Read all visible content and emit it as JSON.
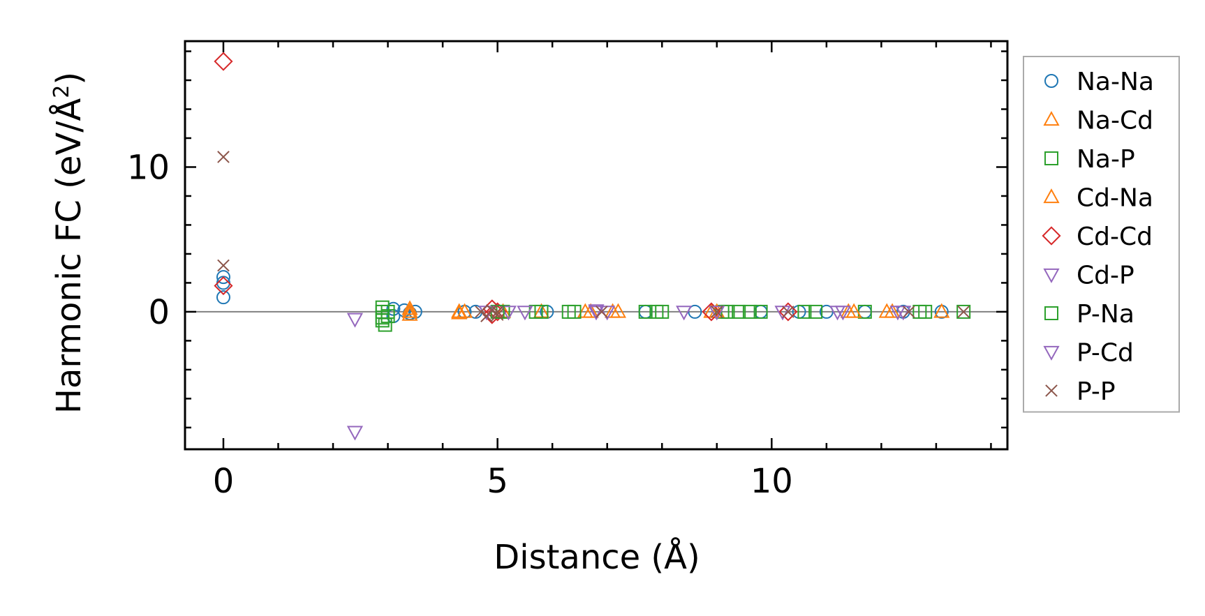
{
  "chart_data": {
    "type": "scatter",
    "xlabel": "Distance (Å)",
    "ylabel_main": "Harmonic FC (eV/Å",
    "ylabel_sup": "2",
    "ylabel_close": ")",
    "xlim": [
      -0.7,
      14.3
    ],
    "ylim": [
      -9.5,
      18.7
    ],
    "xticks": [
      0,
      5,
      10
    ],
    "xtick_labels": [
      "0",
      "5",
      "10"
    ],
    "yticks": [
      0,
      10
    ],
    "ytick_labels": [
      "0",
      "10"
    ],
    "x_minor_step": 1,
    "y_minor_step": 2,
    "zero_line": true,
    "grid": false,
    "legend_position": "outside-right",
    "series": [
      {
        "name": "Na-Na",
        "marker": "circle",
        "color": "#1f77b4",
        "points": [
          [
            0,
            2.4
          ],
          [
            0,
            2.0
          ],
          [
            0,
            1.0
          ],
          [
            3.1,
            0.2
          ],
          [
            3.1,
            -0.3
          ],
          [
            3.3,
            0.1
          ],
          [
            3.4,
            -0.1
          ],
          [
            3.5,
            0.0
          ],
          [
            4.4,
            0.0
          ],
          [
            4.6,
            0.0
          ],
          [
            5.9,
            0.0
          ],
          [
            7.7,
            0.0
          ],
          [
            8.6,
            0.0
          ],
          [
            9.8,
            0.0
          ],
          [
            10.5,
            0.0
          ],
          [
            11.0,
            0.0
          ],
          [
            11.7,
            0.0
          ],
          [
            12.4,
            0.0
          ],
          [
            13.1,
            0.0
          ]
        ]
      },
      {
        "name": "Na-Cd",
        "marker": "triangle-up",
        "color": "#ff7f0e",
        "points": [
          [
            3.4,
            0.0
          ],
          [
            3.4,
            0.2
          ],
          [
            4.3,
            0.0
          ],
          [
            4.3,
            -0.1
          ],
          [
            5.1,
            0.0
          ],
          [
            5.8,
            0.0
          ],
          [
            6.6,
            0.0
          ],
          [
            7.2,
            0.0
          ],
          [
            8.9,
            0.0
          ],
          [
            11.4,
            0.0
          ],
          [
            12.1,
            0.0
          ],
          [
            13.1,
            0.0
          ]
        ]
      },
      {
        "name": "Na-P",
        "marker": "square",
        "color": "#2ca02c",
        "points": [
          [
            2.9,
            0.3
          ],
          [
            2.9,
            -0.6
          ],
          [
            2.95,
            -0.9
          ],
          [
            3.0,
            0.0
          ],
          [
            3.0,
            -0.3
          ],
          [
            5.1,
            0.0
          ],
          [
            5.7,
            0.0
          ],
          [
            6.3,
            0.0
          ],
          [
            7.7,
            0.0
          ],
          [
            8.0,
            0.0
          ],
          [
            9.1,
            0.0
          ],
          [
            9.4,
            0.0
          ],
          [
            9.8,
            0.0
          ],
          [
            10.6,
            0.0
          ],
          [
            11.7,
            0.0
          ],
          [
            12.8,
            0.0
          ],
          [
            13.5,
            0.0
          ]
        ]
      },
      {
        "name": "Cd-Na",
        "marker": "triangle-up",
        "color": "#ff7f0e",
        "points": [
          [
            3.4,
            -0.2
          ],
          [
            4.4,
            0.0
          ],
          [
            6.7,
            0.0
          ],
          [
            7.1,
            0.0
          ],
          [
            9.0,
            0.0
          ],
          [
            11.5,
            0.0
          ],
          [
            12.2,
            0.0
          ]
        ]
      },
      {
        "name": "Cd-Cd",
        "marker": "diamond",
        "color": "#d62728",
        "points": [
          [
            0,
            17.3
          ],
          [
            0,
            1.8
          ],
          [
            4.9,
            0.2
          ],
          [
            4.9,
            -0.2
          ],
          [
            5.0,
            0.0
          ],
          [
            8.9,
            0.0
          ],
          [
            10.3,
            0.0
          ]
        ]
      },
      {
        "name": "Cd-P",
        "marker": "triangle-down",
        "color": "#9467bd",
        "points": [
          [
            2.4,
            -0.5
          ],
          [
            2.4,
            -8.3
          ],
          [
            5.2,
            0.0
          ],
          [
            5.5,
            0.0
          ],
          [
            6.8,
            0.0
          ],
          [
            8.4,
            0.0
          ],
          [
            11.2,
            0.0
          ],
          [
            12.4,
            0.0
          ]
        ]
      },
      {
        "name": "P-Na",
        "marker": "square",
        "color": "#2ca02c",
        "points": [
          [
            2.9,
            0.0
          ],
          [
            2.9,
            -0.4
          ],
          [
            5.0,
            0.0
          ],
          [
            5.8,
            0.0
          ],
          [
            6.4,
            0.0
          ],
          [
            7.9,
            0.0
          ],
          [
            9.2,
            0.0
          ],
          [
            9.6,
            0.0
          ],
          [
            10.8,
            0.0
          ],
          [
            12.7,
            0.0
          ]
        ]
      },
      {
        "name": "P-Cd",
        "marker": "triangle-down",
        "color": "#9467bd",
        "points": [
          [
            4.8,
            0.0
          ],
          [
            6.8,
            0.1
          ],
          [
            7.0,
            0.0
          ],
          [
            9.0,
            0.0
          ],
          [
            10.2,
            0.0
          ],
          [
            11.3,
            0.0
          ],
          [
            12.3,
            0.0
          ]
        ]
      },
      {
        "name": "P-P",
        "marker": "x",
        "color": "#8c564b",
        "points": [
          [
            0,
            10.7
          ],
          [
            0,
            3.2
          ],
          [
            4.7,
            0.0
          ],
          [
            4.8,
            -0.3
          ],
          [
            4.9,
            0.1
          ],
          [
            5.0,
            -0.2
          ],
          [
            5.0,
            0.0
          ],
          [
            6.9,
            0.0
          ],
          [
            9.0,
            0.0
          ],
          [
            10.3,
            0.0
          ],
          [
            12.5,
            0.0
          ],
          [
            13.5,
            0.0
          ]
        ]
      }
    ]
  }
}
